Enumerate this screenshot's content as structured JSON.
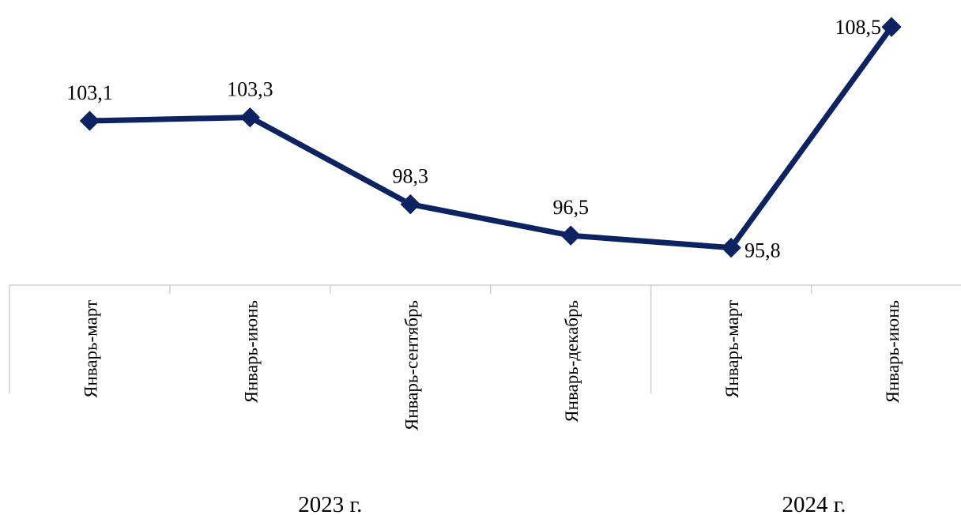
{
  "chart_data": {
    "type": "line",
    "title": "",
    "xlabel": "",
    "ylabel": "",
    "categories": [
      "Январь-март",
      "Январь-июнь",
      "Январь-сентябрь",
      "Январь-декабрь",
      "Январь-март",
      "Январь-июнь"
    ],
    "groups": [
      {
        "label": "2023 г.",
        "start": 0,
        "end": 3
      },
      {
        "label": "2024 г.",
        "start": 4,
        "end": 5
      }
    ],
    "series": [
      {
        "values": [
          103.1,
          103.3,
          98.3,
          96.5,
          95.8,
          108.5
        ],
        "data_labels": [
          "103,1",
          "103,3",
          "98,3",
          "96,5",
          "95,8",
          "108,5"
        ],
        "color": "#0d2260"
      }
    ],
    "marker": "diamond",
    "grid": false,
    "legend": "none"
  }
}
